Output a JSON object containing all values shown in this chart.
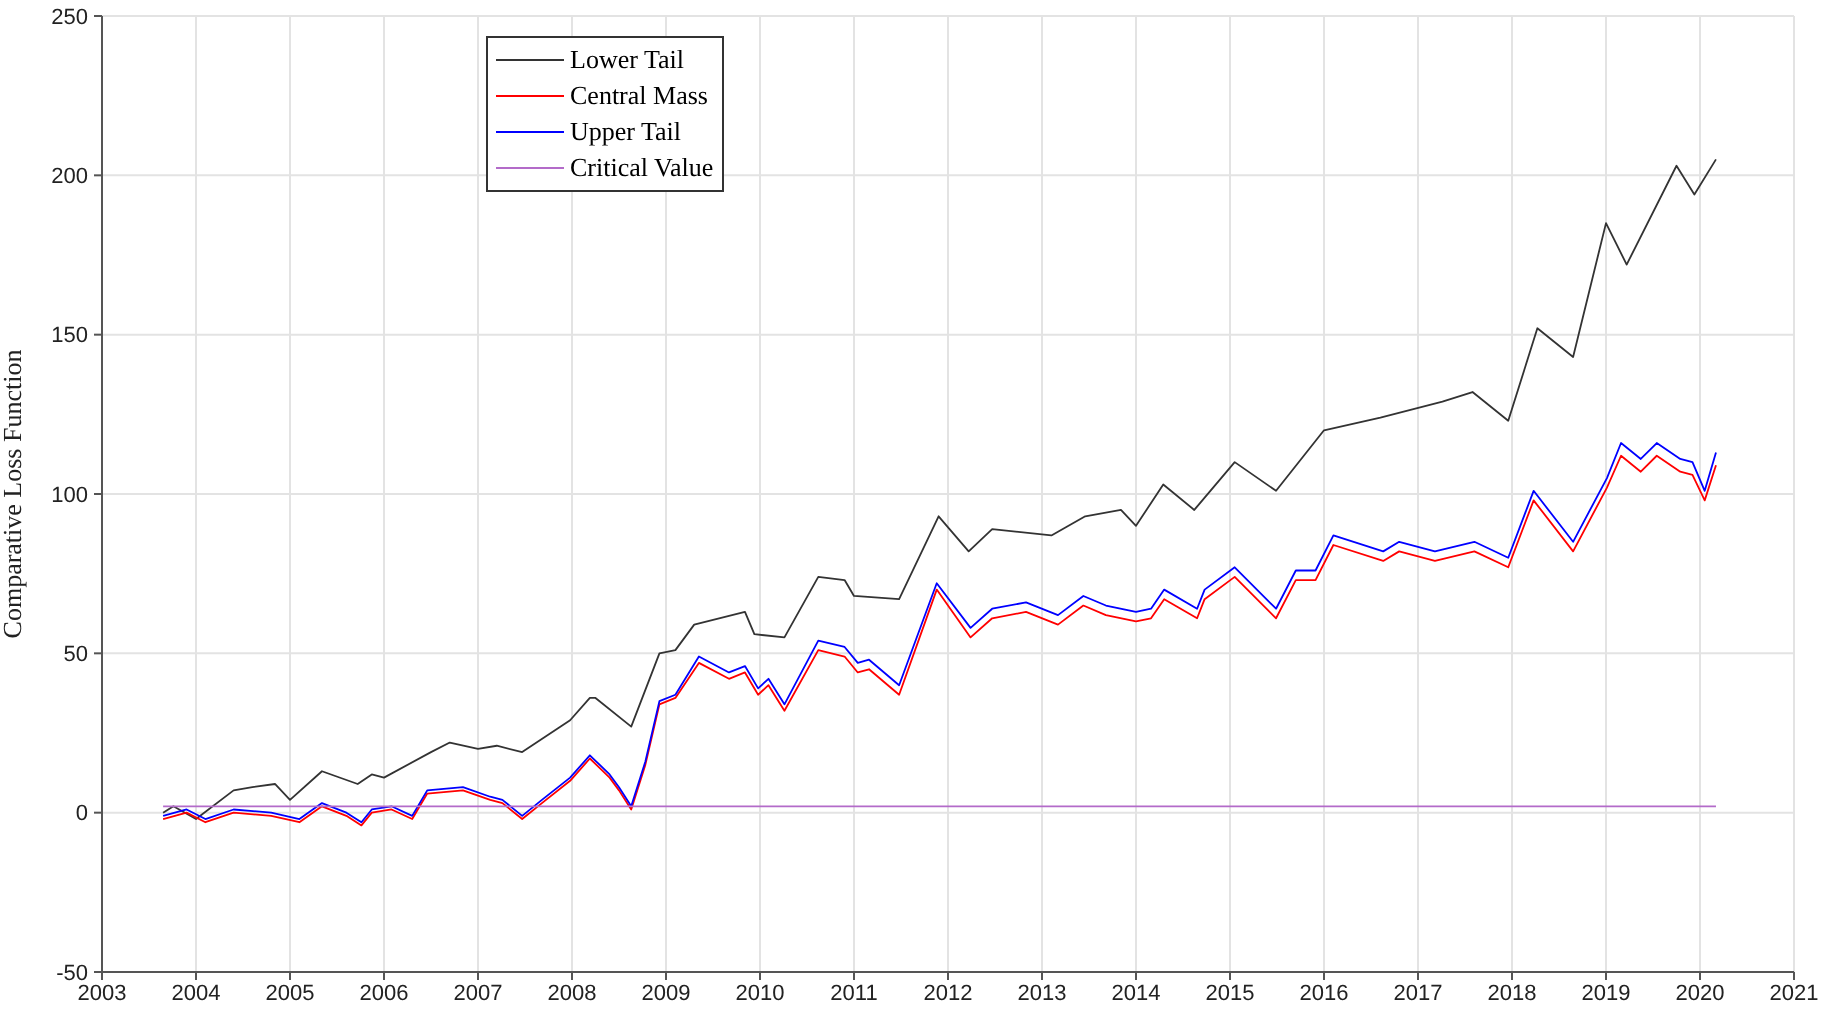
{
  "chart_data": {
    "type": "line",
    "ylabel": "Comparative Loss Function",
    "xlim": [
      2003,
      2021
    ],
    "xticks": [
      2003,
      2004,
      2005,
      2006,
      2007,
      2008,
      2009,
      2010,
      2011,
      2012,
      2013,
      2014,
      2015,
      2016,
      2017,
      2018,
      2019,
      2020,
      2021
    ],
    "ylim": [
      -50,
      250
    ],
    "yticks": [
      -50,
      0,
      50,
      100,
      150,
      200,
      250
    ],
    "grid": true,
    "legend": "top left",
    "marker": "none",
    "line_style": "solid",
    "series": [
      {
        "name": "Lower Tail",
        "color": "#333333",
        "x": [
          2003.65,
          2003.76,
          2004.0,
          2004.4,
          2004.6,
          2004.84,
          2005.0,
          2005.34,
          2005.72,
          2005.87,
          2006.0,
          2006.5,
          2006.7,
          2007.0,
          2007.2,
          2007.47,
          2007.98,
          2008.19,
          2008.25,
          2008.63,
          2008.93,
          2009.1,
          2009.3,
          2009.84,
          2009.94,
          2010.26,
          2010.62,
          2010.9,
          2011.0,
          2011.48,
          2011.9,
          2012.22,
          2012.47,
          2013.1,
          2013.46,
          2013.84,
          2014.0,
          2014.29,
          2014.62,
          2015.05,
          2015.49,
          2016.0,
          2016.6,
          2017.26,
          2017.58,
          2017.96,
          2018.27,
          2018.65,
          2019.0,
          2019.22,
          2019.75,
          2019.94,
          2020.17
        ],
        "values": [
          0,
          2,
          -2,
          7,
          8,
          9,
          4,
          13,
          9,
          12,
          11,
          19,
          22,
          20,
          21,
          19,
          29,
          36,
          36,
          27,
          50,
          51,
          59,
          63,
          56,
          55,
          74,
          73,
          68,
          67,
          93,
          82,
          89,
          87,
          93,
          95,
          90,
          103,
          95,
          110,
          101,
          120,
          124,
          129,
          132,
          123,
          152,
          143,
          185,
          172,
          203,
          194,
          205
        ]
      },
      {
        "name": "Central Mass",
        "color": "#ff0000",
        "x": [
          2003.65,
          2003.9,
          2004.1,
          2004.4,
          2004.8,
          2005.1,
          2005.34,
          2005.6,
          2005.76,
          2005.87,
          2006.08,
          2006.3,
          2006.46,
          2006.84,
          2007.13,
          2007.26,
          2007.47,
          2007.68,
          2007.98,
          2008.19,
          2008.4,
          2008.5,
          2008.63,
          2008.78,
          2008.93,
          2009.1,
          2009.35,
          2009.67,
          2009.84,
          2009.98,
          2010.09,
          2010.26,
          2010.62,
          2010.9,
          2011.04,
          2011.16,
          2011.48,
          2011.88,
          2012.24,
          2012.47,
          2012.83,
          2013.17,
          2013.44,
          2013.68,
          2014.0,
          2014.16,
          2014.3,
          2014.65,
          2014.73,
          2015.05,
          2015.49,
          2015.7,
          2015.91,
          2016.1,
          2016.63,
          2016.8,
          2017.18,
          2017.6,
          2017.96,
          2018.23,
          2018.65,
          2019.01,
          2019.16,
          2019.37,
          2019.54,
          2019.79,
          2019.92,
          2020.05,
          2020.17
        ],
        "values": [
          -2,
          0,
          -3,
          0,
          -1,
          -3,
          2,
          -1,
          -4,
          0,
          1,
          -2,
          6,
          7,
          4,
          3,
          -2,
          3,
          10,
          17,
          11,
          7,
          1,
          15,
          34,
          36,
          47,
          42,
          44,
          37,
          40,
          32,
          51,
          49,
          44,
          45,
          37,
          70,
          55,
          61,
          63,
          59,
          65,
          62,
          60,
          61,
          67,
          61,
          67,
          74,
          61,
          73,
          73,
          84,
          79,
          82,
          79,
          82,
          77,
          98,
          82,
          102,
          112,
          107,
          112,
          107,
          106,
          98,
          109
        ]
      },
      {
        "name": "Upper Tail",
        "color": "#0000ff",
        "x": [
          2003.65,
          2003.9,
          2004.1,
          2004.4,
          2004.8,
          2005.1,
          2005.34,
          2005.6,
          2005.76,
          2005.87,
          2006.08,
          2006.3,
          2006.46,
          2006.84,
          2007.13,
          2007.26,
          2007.47,
          2007.68,
          2007.98,
          2008.19,
          2008.4,
          2008.5,
          2008.63,
          2008.78,
          2008.93,
          2009.1,
          2009.35,
          2009.67,
          2009.84,
          2009.98,
          2010.09,
          2010.26,
          2010.62,
          2010.9,
          2011.04,
          2011.16,
          2011.48,
          2011.88,
          2012.24,
          2012.47,
          2012.83,
          2013.17,
          2013.44,
          2013.68,
          2014.0,
          2014.16,
          2014.3,
          2014.65,
          2014.73,
          2015.05,
          2015.49,
          2015.7,
          2015.91,
          2016.1,
          2016.63,
          2016.8,
          2017.18,
          2017.6,
          2017.96,
          2018.23,
          2018.65,
          2019.01,
          2019.16,
          2019.37,
          2019.54,
          2019.79,
          2019.92,
          2020.05,
          2020.17
        ],
        "values": [
          -1,
          1,
          -2,
          1,
          0,
          -2,
          3,
          0,
          -3,
          1,
          2,
          -1,
          7,
          8,
          5,
          4,
          -1,
          4,
          11,
          18,
          12,
          8,
          2,
          16,
          35,
          37,
          49,
          44,
          46,
          39,
          42,
          34,
          54,
          52,
          47,
          48,
          40,
          72,
          58,
          64,
          66,
          62,
          68,
          65,
          63,
          64,
          70,
          64,
          70,
          77,
          64,
          76,
          76,
          87,
          82,
          85,
          82,
          85,
          80,
          101,
          85,
          105,
          116,
          111,
          116,
          111,
          110,
          101,
          113
        ]
      },
      {
        "name": "Critical Value",
        "color": "#b36bc9",
        "x": [
          2003.65,
          2020.17
        ],
        "values": [
          2,
          2
        ]
      }
    ]
  }
}
